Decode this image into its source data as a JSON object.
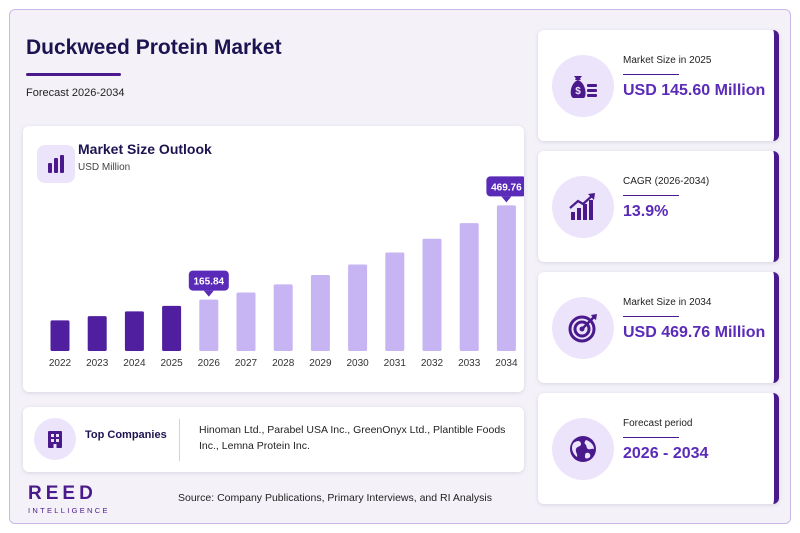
{
  "header": {
    "title": "Duckweed Protein Market",
    "subtitle": "Forecast 2026-2034"
  },
  "chart_card": {
    "title": "Market Size Outlook",
    "unit": "USD Million"
  },
  "chart_data": {
    "type": "bar",
    "title": "Market Size Outlook",
    "ylabel": "USD Million",
    "categories": [
      "2022",
      "2023",
      "2024",
      "2025",
      "2026",
      "2027",
      "2028",
      "2029",
      "2030",
      "2031",
      "2032",
      "2033",
      "2034"
    ],
    "values": [
      98.6,
      112.3,
      127.9,
      145.6,
      165.84,
      188.9,
      215.1,
      245.0,
      279.1,
      317.9,
      362.1,
      412.4,
      469.76
    ],
    "historical_through": "2025",
    "data_labels": [
      {
        "category": "2026",
        "text": "165.84"
      },
      {
        "category": "2034",
        "text": "469.76"
      }
    ],
    "ylim": [
      0,
      500
    ],
    "grid": false,
    "colors": {
      "historical": "#4f1fa0",
      "forecast": "#c6b4f3",
      "label_bg": "#5a2ab8"
    }
  },
  "companies": {
    "label": "Top Companies",
    "list": "Hinoman Ltd., Parabel USA Inc., GreenOnyx Ltd., Plantible Foods Inc., Lemna Protein Inc."
  },
  "stats": [
    {
      "label": "Market Size in 2025",
      "value": "USD 145.60 Million",
      "icon": "money-bag-icon"
    },
    {
      "label": "CAGR (2026-2034)",
      "value": "13.9%",
      "icon": "growth-chart-icon"
    },
    {
      "label": "Market Size in 2034",
      "value": "USD 469.76 Million",
      "icon": "target-icon"
    },
    {
      "label": "Forecast period",
      "value": "2026 - 2034",
      "icon": "globe-icon"
    }
  ],
  "footer": {
    "logo_main": "REED",
    "logo_sub": "INTELLIGENCE",
    "source": "Source: Company Publications, Primary Interviews, and RI Analysis"
  },
  "colors": {
    "accent": "#4a1a8c",
    "value_text": "#5a2ab8",
    "title_text": "#1c1450",
    "icon_bg": "#ece4fb"
  }
}
